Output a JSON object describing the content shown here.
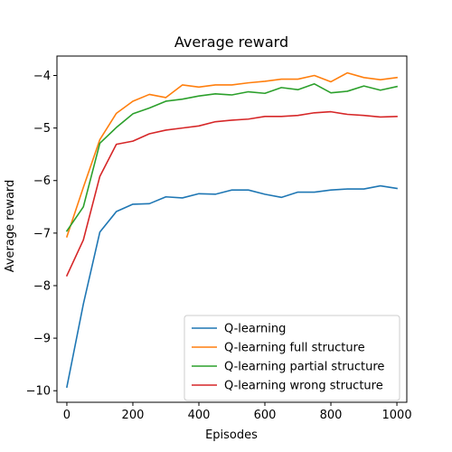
{
  "chart_data": {
    "type": "line",
    "title": "Average reward",
    "xlabel": "Episodes",
    "ylabel": "Average reward",
    "xlim": [
      -30,
      1030
    ],
    "ylim": [
      -10.22,
      -3.63
    ],
    "xticks": [
      0,
      200,
      400,
      600,
      800,
      1000
    ],
    "yticks": [
      -10,
      -9,
      -8,
      -7,
      -6,
      -5,
      -4
    ],
    "xtick_labels": [
      "0",
      "200",
      "400",
      "600",
      "800",
      "1000"
    ],
    "ytick_labels": [
      "−10",
      "−9",
      "−8",
      "−7",
      "−6",
      "−5",
      "−4"
    ],
    "grid": false,
    "legend_position": "lower-right",
    "x": [
      0,
      50,
      100,
      150,
      200,
      250,
      300,
      350,
      400,
      450,
      500,
      550,
      600,
      650,
      700,
      750,
      800,
      850,
      900,
      950,
      1000
    ],
    "series": [
      {
        "name": "Q-learning",
        "color": "#1f77b4",
        "values": [
          -9.93,
          -8.35,
          -6.98,
          -6.59,
          -6.45,
          -6.44,
          -6.31,
          -6.33,
          -6.25,
          -6.26,
          -6.18,
          -6.18,
          -6.26,
          -6.32,
          -6.22,
          -6.22,
          -6.18,
          -6.16,
          -6.16,
          -6.1,
          -6.15
        ]
      },
      {
        "name": "Q-learning full structure",
        "color": "#ff7f0e",
        "values": [
          -7.07,
          -6.13,
          -5.22,
          -4.72,
          -4.49,
          -4.36,
          -4.42,
          -4.18,
          -4.22,
          -4.18,
          -4.18,
          -4.14,
          -4.11,
          -4.07,
          -4.07,
          -4.0,
          -4.12,
          -3.95,
          -4.04,
          -4.08,
          -4.04
        ]
      },
      {
        "name": "Q-learning partial structure",
        "color": "#2ca02c",
        "values": [
          -6.96,
          -6.5,
          -5.29,
          -4.99,
          -4.73,
          -4.62,
          -4.49,
          -4.45,
          -4.39,
          -4.35,
          -4.37,
          -4.31,
          -4.34,
          -4.23,
          -4.27,
          -4.16,
          -4.33,
          -4.3,
          -4.2,
          -4.28,
          -4.21
        ]
      },
      {
        "name": "Q-learning wrong structure",
        "color": "#d62728",
        "values": [
          -7.81,
          -7.13,
          -5.92,
          -5.31,
          -5.25,
          -5.11,
          -5.04,
          -5.0,
          -4.96,
          -4.88,
          -4.85,
          -4.83,
          -4.78,
          -4.78,
          -4.76,
          -4.71,
          -4.69,
          -4.74,
          -4.76,
          -4.79,
          -4.78
        ]
      }
    ]
  }
}
